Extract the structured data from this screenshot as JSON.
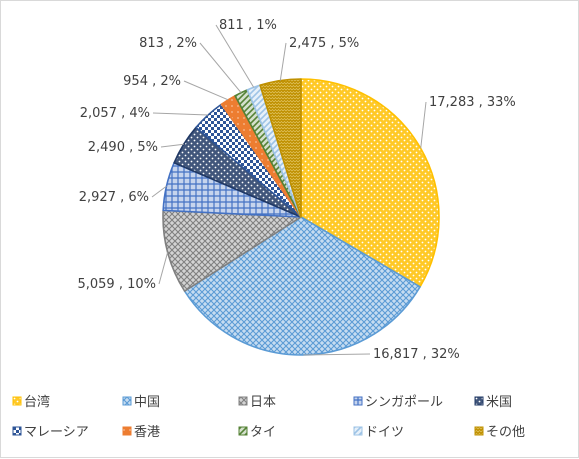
{
  "chart_data": {
    "type": "pie",
    "title": "",
    "categories": [
      "台湾",
      "中国",
      "日本",
      "シンガポール",
      "米国",
      "マレーシア",
      "香港",
      "タイ",
      "ドイツ",
      "その他"
    ],
    "values": [
      17283,
      16817,
      5059,
      2927,
      2490,
      2057,
      954,
      813,
      811,
      2475
    ],
    "data_labels": [
      "17,283 , 33%",
      "16,817 , 32%",
      "5,059 , 10%",
      "2,927 , 6%",
      "2,490 , 5%",
      "2,057 , 4%",
      "954 , 2%",
      "813 , 2%",
      "811 , 1%",
      "2,475 , 5%"
    ],
    "colors": [
      "#FFC000",
      "#5B9BD5",
      "#808080",
      "#4472C4",
      "#203864",
      "#2E5597",
      "#ED7D31",
      "#548235",
      "#9DC3E6",
      "#BF9000"
    ],
    "patterns": [
      "dots",
      "crosshatch",
      "crosshatch",
      "grid",
      "dots",
      "check",
      "dense",
      "diagonal",
      "diagonal",
      "zigzag"
    ],
    "start_angle_deg": 0,
    "direction": "clockwise",
    "legend_position": "bottom",
    "grid": false
  }
}
